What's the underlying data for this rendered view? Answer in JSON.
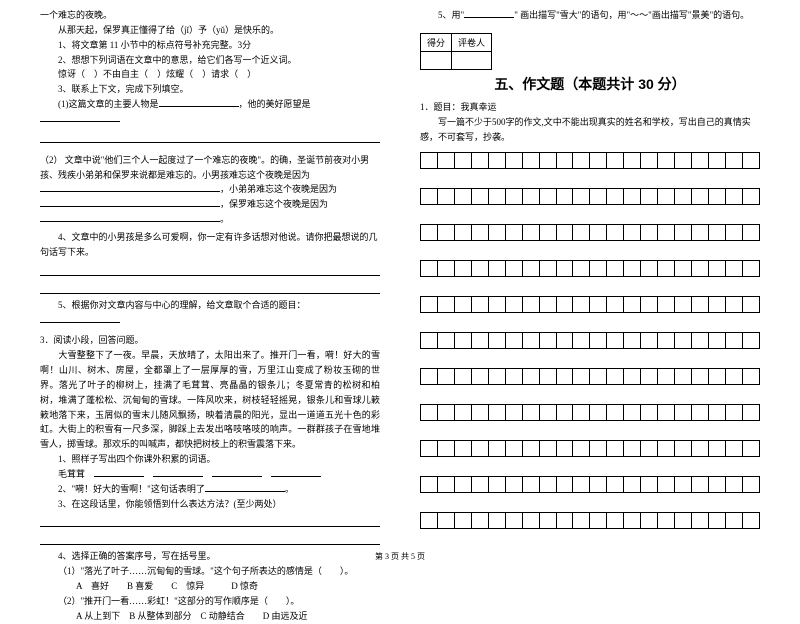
{
  "left": {
    "ln1": "一个难忘的夜晚。",
    "ln2_pre": "从那天起，保罗真正懂得了给（",
    "ln2_a": "jǐ",
    "ln2_mid": "）予（",
    "ln2_b": "yǔ",
    "ln2_end": "）是快乐的。",
    "q1": "1、将文章第 11 小节中的标点符号补充完整。3分",
    "q2": "2、想想下列词语在文章中的意思，给它们各写一个近义词。",
    "q2_line_a": "惊讶（",
    "q2_line_b": "）不由自主（",
    "q2_line_c": "）炫耀（",
    "q2_line_d": "）请求（",
    "q2_line_e": "）",
    "q3": "3、联系上下文，完成下列填空。",
    "q3_1_a": "(1)这篇文章的主要人物是",
    "q3_1_b": "，他的美好愿望是",
    "q3_2_a": "（2） 文章中说\"他们三个人一起度过了一个难忘的夜晚\"。的确，圣诞节前夜对小男孩、残疾小弟弟和保罗来说都是难忘的。小男孩难忘这个夜晚是因为",
    "q3_2_b": "，小弟弟难忘这个夜晚是因为",
    "q3_2_c": "，保罗难忘这个夜晚是因为",
    "q3_2_d": "。",
    "q4": "4、文章中的小男孩是多么可爱啊，你一定有许多话想对他说。请你把最想说的几句话写下来。",
    "q5": "5、根据你对文章内容与中心的理解，给文章取个合适的题目：",
    "p3": "3．阅读小段，回答问题。",
    "p3_body": "　　大雪整整下了一夜。早晨，天放晴了，太阳出来了。推开门一看，嗬！好大的雪啊！山川、树木、房屋，全都罩上了一层厚厚的雪，万里江山变成了粉妆玉砌的世界。落光了叶子的柳树上，挂满了毛茸茸、亮晶晶的银条儿；冬夏常青的松树和柏树，堆满了蓬松松、沉甸甸的雪球。一阵风吹来，树枝轻轻摇晃，银条儿和雪球儿簌簌地落下来，玉屑似的雪末儿随风飘扬，映着清晨的阳光，显出一道道五光十色的彩虹。大街上的积雪有一尺多深，脚踩上去发出咯吱咯吱的响声。一群群孩子在雪地堆雪人，掷雪球。那欢乐的叫喊声，都快把树枝上的积雪震落下来。",
    "p3_q1": "1、照样子写出四个你课外积累的词语。",
    "p3_q1_ex": "毛茸茸",
    "p3_q2_a": "2、\"嗬！好大的雪啊！\"这句话表明了",
    "p3_q2_b": "。",
    "p3_q3": "3、在这段话里，你能领悟到什么表达方法？(至少两处）",
    "p3_q4": "4、选择正确的答案序号，写在括号里。",
    "p3_q4_1": "（1）\"落光了叶子……沉甸甸的雪球。\"这个句子所表达的感情是（　　）。",
    "p3_q4_1_opts": "A　喜好　　B  喜爱　　C　惊异　　　D 惊奇",
    "p3_q4_2": "（2）\"推开门一看……彩虹！\"这部分的写作顺序是（　　）。",
    "p3_q4_2_opts": "A  从上到下　B 从整体到部分　C 动静结合　　D 由远及近"
  },
  "right": {
    "q5_a": "5、用\"",
    "q5_b": "\" 画出描写\"雪大\"的语句，用\"",
    "q5_c": "～～",
    "q5_d": "\"画出描写\"景美\"的语句。",
    "score_a": "得分",
    "score_b": "评卷人",
    "section": "五、作文题（本题共计 30 分）",
    "essay_t": "1．题目：我真幸运",
    "essay_body": "　　写一篇不少于500字的作文,文中不能出现真实的姓名和学校，写出自己的真情实感，不可套写，抄袭。"
  },
  "footer": "第 3 页  共 5 页"
}
